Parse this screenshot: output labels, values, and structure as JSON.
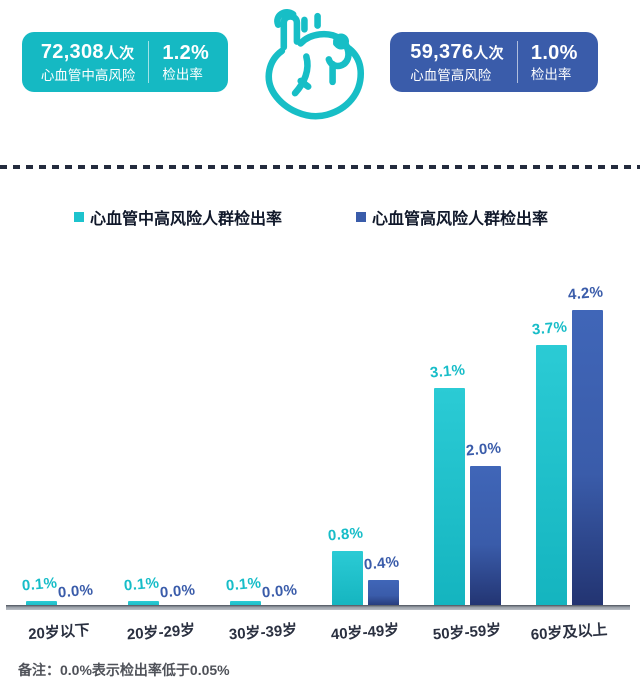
{
  "header": {
    "left_box": {
      "count": "72,308",
      "count_unit": "人次",
      "label": "心血管中高风险",
      "rate": "1.2%",
      "rate_label": "检出率",
      "color": "#15b9c3"
    },
    "right_box": {
      "count": "59,376",
      "count_unit": "人次",
      "label": "心血管高风险",
      "rate": "1.0%",
      "rate_label": "检出率",
      "color": "#3a5caa"
    }
  },
  "legend": [
    {
      "label": "心血管中高风险人群检出率",
      "color": "#1dc3cd"
    },
    {
      "label": "心血管高风险人群检出率",
      "color": "#3a5caa"
    }
  ],
  "chart_data": {
    "type": "bar",
    "categories": [
      "20岁以下",
      "20岁-29岁",
      "30岁-39岁",
      "40岁-49岁",
      "50岁-59岁",
      "60岁及以上"
    ],
    "series": [
      {
        "name": "心血管中高风险人群检出率",
        "color": "#1dc3cd",
        "values": [
          0.1,
          0.1,
          0.1,
          0.8,
          3.1,
          3.7
        ]
      },
      {
        "name": "心血管高风险人群检出率",
        "color": "#3a5caa",
        "values": [
          0.0,
          0.0,
          0.0,
          0.4,
          2.0,
          4.2
        ]
      }
    ],
    "value_suffix": "%",
    "ylim": [
      0,
      4.5
    ],
    "grid": false,
    "legend_position": "top",
    "value_labels": "shown above each bar, one decimal"
  },
  "note": "备注：0.0%表示检出率低于0.05%"
}
